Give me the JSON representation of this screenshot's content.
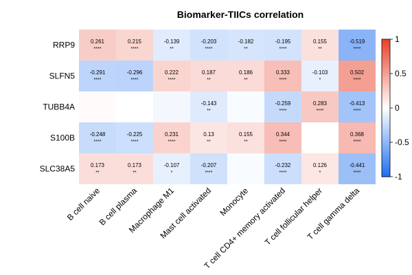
{
  "chart_data": {
    "type": "heatmap",
    "title": "Biomarker-TIICs correlation",
    "rows": [
      "RRP9",
      "SLFN5",
      "TUBB4A",
      "S100B",
      "SLC38A5"
    ],
    "columns": [
      "B cell naive",
      "B cell plasma",
      "Macrophage M1",
      "Mast cell activated",
      "Monocyte",
      "T cell CD4+ memory activated",
      "T cell follicular helper",
      "T cell gamma delta"
    ],
    "values": [
      [
        0.261,
        0.215,
        -0.139,
        -0.203,
        -0.182,
        -0.195,
        0.155,
        -0.519
      ],
      [
        -0.291,
        -0.296,
        0.222,
        0.187,
        0.186,
        0.333,
        -0.103,
        0.502
      ],
      [
        0.02,
        0.0,
        -0.05,
        -0.143,
        -0.03,
        -0.259,
        0.283,
        -0.413
      ],
      [
        -0.248,
        -0.225,
        0.231,
        0.13,
        0.155,
        0.344,
        0.0,
        0.368
      ],
      [
        0.173,
        0.173,
        -0.107,
        -0.207,
        -0.03,
        -0.232,
        0.126,
        -0.441
      ]
    ],
    "value_labels": [
      [
        "0.261",
        "0.215",
        "-0.139",
        "-0.203",
        "-0.182",
        "-0.195",
        "0.155",
        "-0.519"
      ],
      [
        "-0.291",
        "-0.296",
        "0.222",
        "0.187",
        "0.186",
        "0.333",
        "-0.103",
        "0.502"
      ],
      [
        "",
        "",
        "",
        "-0.143",
        "",
        "-0.259",
        "0.283",
        "-0.413"
      ],
      [
        "-0.248",
        "-0.225",
        "0.231",
        "0.13",
        "0.155",
        "0.344",
        "",
        "0.368"
      ],
      [
        "0.173",
        "0.173",
        "-0.107",
        "-0.207",
        "",
        "-0.232",
        "0.126",
        "-0.441"
      ]
    ],
    "significance": [
      [
        "****",
        "****",
        "**",
        "****",
        "**",
        "****",
        "**",
        "****"
      ],
      [
        "****",
        "****",
        "****",
        "**",
        "**",
        "****",
        "*",
        "****"
      ],
      [
        "",
        "",
        "",
        "**",
        "",
        "****",
        "****",
        "****"
      ],
      [
        "****",
        "****",
        "****",
        "**",
        "**",
        "****",
        "",
        "****"
      ],
      [
        "**",
        "**",
        "*",
        "****",
        "",
        "****",
        "*",
        "****"
      ]
    ],
    "color_scale": {
      "min": -1,
      "max": 1,
      "low": "#1e6ff0",
      "mid": "#ffffff",
      "high": "#e8402a"
    },
    "colorbar_ticks": [
      "1",
      "0.5",
      "0",
      "-0.5",
      "-1"
    ],
    "colorbar_values": [
      1,
      0.5,
      0,
      -0.5,
      -1
    ],
    "legend_placement": "right"
  }
}
